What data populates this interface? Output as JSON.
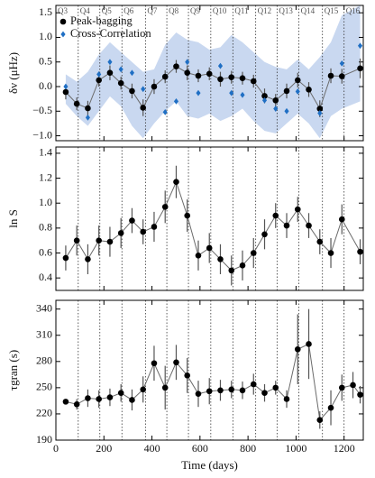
{
  "chart_data": [
    {
      "type": "errorbar",
      "ylabel": "δν (μHz)",
      "legend": "upper left",
      "xlim": [
        0,
        1280
      ],
      "xticks": [
        0,
        200,
        400,
        600,
        800,
        1000,
        1200
      ],
      "ylim": [
        -1.1,
        1.65
      ],
      "yticks": [
        {
          "value": -1.0,
          "label": "−1.0"
        },
        {
          "value": -0.5,
          "label": "−0.5"
        },
        {
          "value": 0,
          "label": "0.0"
        },
        {
          "value": 0.5,
          "label": "0.5"
        },
        {
          "value": 1.0,
          "label": "1.0"
        },
        {
          "value": 1.5,
          "label": "1.5"
        }
      ],
      "quarters": [
        {
          "value": 0,
          "label": "Q3"
        },
        {
          "value": 93,
          "label": "Q4"
        },
        {
          "value": 183,
          "label": "Q5"
        },
        {
          "value": 275,
          "label": "Q6"
        },
        {
          "value": 373,
          "label": "Q7"
        },
        {
          "value": 462,
          "label": "Q8"
        },
        {
          "value": 552,
          "label": "Q9"
        },
        {
          "value": 645,
          "label": "Q10"
        },
        {
          "value": 737,
          "label": "Q11"
        },
        {
          "value": 832,
          "label": "Q12"
        },
        {
          "value": 921,
          "label": "Q13"
        },
        {
          "value": 1012,
          "label": "Q14"
        },
        {
          "value": 1110,
          "label": "Q15"
        },
        {
          "value": 1200,
          "label": "Q16"
        }
      ],
      "band": {
        "color": "#c9d8f0",
        "x": [
          41,
          87,
          133,
          179,
          225,
          271,
          317,
          363,
          409,
          455,
          501,
          547,
          593,
          639,
          685,
          731,
          777,
          823,
          869,
          915,
          961,
          1007,
          1053,
          1099,
          1145,
          1191,
          1267
        ],
        "upper": [
          0.25,
          0.1,
          0.3,
          0.65,
          0.9,
          0.7,
          0.5,
          0.3,
          0.35,
          0.85,
          1.1,
          0.95,
          0.9,
          0.75,
          0.8,
          1.05,
          0.9,
          0.7,
          0.5,
          0.4,
          0.35,
          0.55,
          0.35,
          0.6,
          0.9,
          1.45,
          1.65
        ],
        "lower": [
          -0.35,
          -0.6,
          -0.8,
          -0.5,
          -0.2,
          -0.4,
          -0.8,
          -1.05,
          -0.75,
          -0.5,
          -0.3,
          -0.6,
          -0.65,
          -0.55,
          -0.7,
          -0.6,
          -0.45,
          -0.7,
          -0.9,
          -0.95,
          -0.75,
          -0.55,
          -0.75,
          -1.05,
          -0.6,
          -0.45,
          -0.3
        ]
      },
      "series": [
        {
          "name": "Peak-bagging",
          "kind": "errorbar",
          "color": "#000000",
          "line_color": "#6b6b6b",
          "x": [
            41,
            87,
            133,
            179,
            225,
            271,
            317,
            363,
            409,
            455,
            501,
            547,
            593,
            639,
            685,
            731,
            777,
            823,
            869,
            915,
            961,
            1007,
            1053,
            1099,
            1145,
            1191,
            1267
          ],
          "values": [
            -0.11,
            -0.35,
            -0.44,
            0.13,
            0.28,
            0.07,
            -0.09,
            -0.43,
            0.0,
            0.2,
            0.41,
            0.28,
            0.22,
            0.26,
            0.15,
            0.19,
            0.17,
            0.11,
            -0.19,
            -0.28,
            -0.09,
            0.13,
            -0.06,
            -0.45,
            0.22,
            0.21,
            0.37
          ],
          "errors": [
            0.15,
            0.13,
            0.15,
            0.13,
            0.15,
            0.13,
            0.15,
            0.17,
            0.15,
            0.13,
            0.13,
            0.15,
            0.13,
            0.13,
            0.15,
            0.13,
            0.13,
            0.13,
            0.15,
            0.13,
            0.15,
            0.15,
            0.15,
            0.17,
            0.15,
            0.15,
            0.2
          ]
        },
        {
          "name": "Cross-Correlation",
          "kind": "diamond",
          "color": "#1f6fc4",
          "x": [
            41,
            87,
            133,
            179,
            225,
            271,
            317,
            363,
            409,
            455,
            501,
            547,
            593,
            639,
            685,
            731,
            777,
            823,
            869,
            915,
            961,
            1007,
            1053,
            1099,
            1145,
            1191,
            1267
          ],
          "values": [
            0.0,
            null,
            -0.63,
            0.25,
            0.5,
            0.35,
            0.28,
            -0.05,
            null,
            -0.52,
            -0.3,
            0.5,
            -0.13,
            null,
            0.42,
            -0.13,
            -0.17,
            null,
            -0.28,
            -0.45,
            -0.5,
            -0.1,
            null,
            -0.54,
            null,
            0.47,
            0.83
          ]
        }
      ]
    },
    {
      "type": "errorbar",
      "ylabel": "ln S",
      "xlim": [
        0,
        1280
      ],
      "xticks": [
        0,
        200,
        400,
        600,
        800,
        1000,
        1200
      ],
      "ylim": [
        0.3,
        1.45
      ],
      "yticks": [
        0.4,
        0.6,
        0.8,
        {
          "value": 1.0,
          "label": "1.0"
        },
        1.2,
        1.4
      ],
      "series": [
        {
          "kind": "errorbar",
          "color": "#000000",
          "line_color": "#6b6b6b",
          "x": [
            41,
            87,
            133,
            179,
            225,
            271,
            317,
            363,
            409,
            455,
            501,
            547,
            593,
            639,
            685,
            731,
            777,
            823,
            869,
            915,
            961,
            1007,
            1053,
            1099,
            1145,
            1191,
            1267
          ],
          "values": [
            0.56,
            0.7,
            0.55,
            0.7,
            0.69,
            0.76,
            0.86,
            0.77,
            0.81,
            0.97,
            1.17,
            0.9,
            0.58,
            0.64,
            0.55,
            0.46,
            0.5,
            0.6,
            0.75,
            0.9,
            0.82,
            0.95,
            0.82,
            0.69,
            0.6,
            0.87,
            0.61
          ],
          "errors": [
            0.1,
            0.12,
            0.12,
            0.12,
            0.12,
            0.12,
            0.1,
            0.1,
            0.12,
            0.13,
            0.13,
            0.13,
            0.12,
            0.12,
            0.12,
            0.12,
            0.12,
            0.12,
            0.12,
            0.1,
            0.1,
            0.1,
            0.1,
            0.1,
            0.12,
            0.12,
            0.1
          ]
        }
      ]
    },
    {
      "type": "errorbar",
      "ylabel": "τgran (s)",
      "xlabel": "Time (days)",
      "xlim": [
        0,
        1280
      ],
      "xticks": [
        0,
        200,
        400,
        600,
        800,
        1000,
        1200
      ],
      "ylim": [
        190,
        350
      ],
      "yticks": [
        190,
        220,
        250,
        280,
        310,
        340
      ],
      "series": [
        {
          "kind": "errorbar",
          "color": "#000000",
          "line_color": "#6b6b6b",
          "x": [
            41,
            87,
            133,
            179,
            225,
            271,
            317,
            363,
            409,
            455,
            501,
            547,
            593,
            639,
            685,
            731,
            777,
            823,
            869,
            915,
            961,
            1007,
            1053,
            1099,
            1145,
            1191,
            1237,
            1267
          ],
          "values": [
            234,
            231,
            238,
            237,
            239,
            244,
            236,
            248,
            278,
            250,
            279,
            264,
            243,
            246,
            247,
            248,
            247,
            254,
            244,
            250,
            237,
            294,
            300,
            213,
            227,
            250,
            253,
            242
          ],
          "errors": [
            3,
            6,
            10,
            10,
            10,
            10,
            12,
            15,
            20,
            25,
            20,
            20,
            15,
            15,
            12,
            10,
            10,
            12,
            10,
            8,
            10,
            40,
            40,
            10,
            20,
            15,
            15,
            10
          ]
        }
      ]
    }
  ]
}
